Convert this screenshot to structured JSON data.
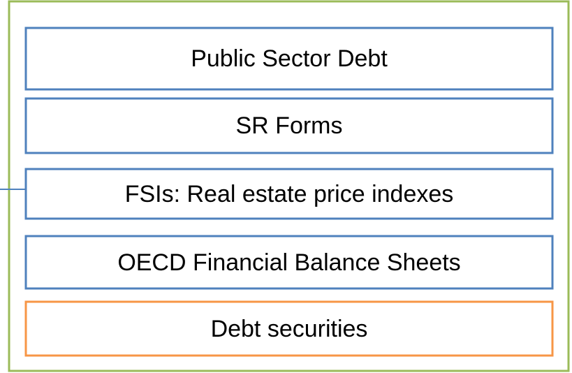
{
  "boxes": [
    {
      "label": "Public Sector Debt"
    },
    {
      "label": "SR Forms"
    },
    {
      "label": "FSIs: Real estate price indexes"
    },
    {
      "label": "OECD Financial Balance Sheets"
    },
    {
      "label": "Debt securities"
    }
  ]
}
